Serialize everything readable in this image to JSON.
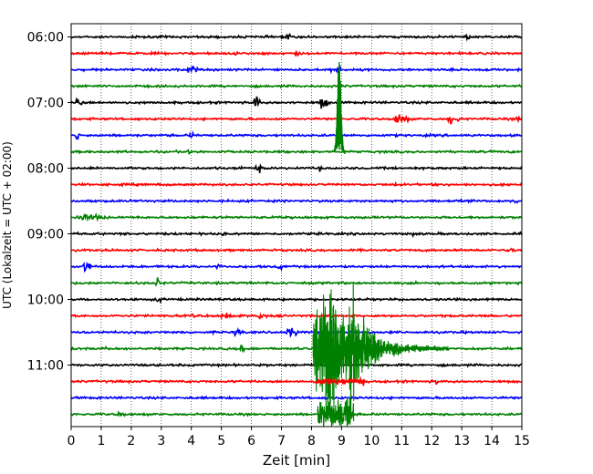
{
  "chart_data": {
    "type": "line",
    "title": "",
    "xlabel": "Zeit  [min]",
    "ylabel": "UTC (Lokalzeit = UTC + 02:00)",
    "xlim": [
      0,
      15
    ],
    "x_ticks": [
      "0",
      "1",
      "2",
      "3",
      "4",
      "5",
      "6",
      "7",
      "8",
      "9",
      "10",
      "11",
      "12",
      "13",
      "14",
      "15"
    ],
    "y_ticks": [
      "06:00",
      "07:00",
      "08:00",
      "09:00",
      "10:00",
      "11:00"
    ],
    "grid": "vertical dotted",
    "trace_interval_min": 15,
    "trace_colors": [
      "#000000",
      "#ff0000",
      "#0000ff",
      "#008000"
    ],
    "traces": [
      {
        "start": "06:00",
        "color": "#000000"
      },
      {
        "start": "06:15",
        "color": "#ff0000"
      },
      {
        "start": "06:30",
        "color": "#0000ff"
      },
      {
        "start": "06:45",
        "color": "#008000"
      },
      {
        "start": "07:00",
        "color": "#000000"
      },
      {
        "start": "07:15",
        "color": "#ff0000"
      },
      {
        "start": "07:30",
        "color": "#0000ff"
      },
      {
        "start": "07:45",
        "color": "#008000"
      },
      {
        "start": "08:00",
        "color": "#000000"
      },
      {
        "start": "08:15",
        "color": "#ff0000"
      },
      {
        "start": "08:30",
        "color": "#0000ff"
      },
      {
        "start": "08:45",
        "color": "#008000"
      },
      {
        "start": "09:00",
        "color": "#000000"
      },
      {
        "start": "09:15",
        "color": "#ff0000"
      },
      {
        "start": "09:30",
        "color": "#0000ff"
      },
      {
        "start": "09:45",
        "color": "#008000"
      },
      {
        "start": "10:00",
        "color": "#000000"
      },
      {
        "start": "10:15",
        "color": "#ff0000"
      },
      {
        "start": "10:30",
        "color": "#0000ff"
      },
      {
        "start": "10:45",
        "color": "#008000"
      },
      {
        "start": "11:00",
        "color": "#000000"
      },
      {
        "start": "11:15",
        "color": "#ff0000"
      },
      {
        "start": "11:30",
        "color": "#0000ff"
      },
      {
        "start": "11:45",
        "color": "#008000"
      }
    ]
  }
}
